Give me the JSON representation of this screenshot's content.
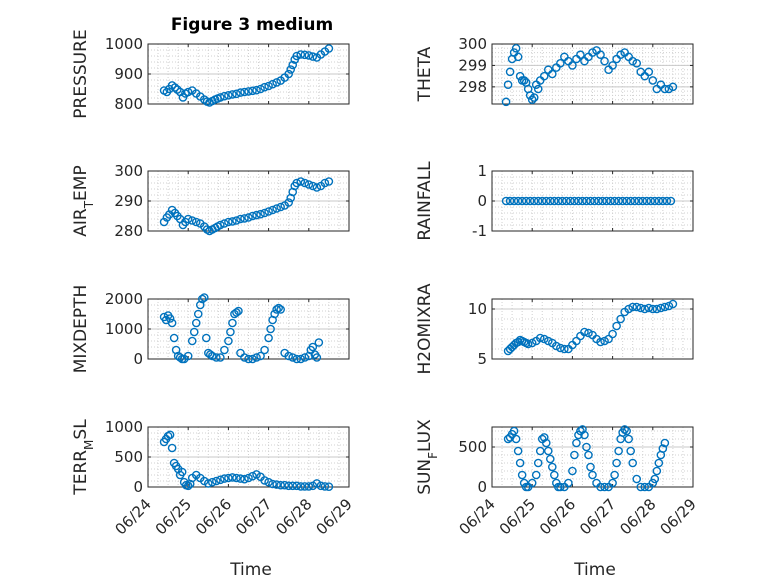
{
  "figure_title": "Figure 3 medium",
  "xlabel": "Time",
  "x_ticks": [
    "06/24",
    "06/25",
    "06/26",
    "06/27",
    "06/28",
    "06/29"
  ],
  "marker_color": "#0072BD",
  "chart_data": [
    {
      "type": "scatter",
      "ylabel": "PRESSURE",
      "ylim": [
        800,
        1000
      ],
      "yticks": [
        800,
        900,
        1000
      ],
      "grid": true,
      "title": "Figure 3 medium",
      "x": [
        0.4,
        0.47,
        0.53,
        0.6,
        0.67,
        0.73,
        0.8,
        0.87,
        0.93,
        1.0,
        1.1,
        1.2,
        1.3,
        1.4,
        1.47,
        1.53,
        1.6,
        1.67,
        1.73,
        1.8,
        1.9,
        2.0,
        2.1,
        2.2,
        2.3,
        2.4,
        2.5,
        2.6,
        2.7,
        2.8,
        2.9,
        3.0,
        3.1,
        3.2,
        3.3,
        3.4,
        3.5,
        3.55,
        3.6,
        3.65,
        3.7,
        3.8,
        3.9,
        4.0,
        4.1,
        4.2,
        4.3,
        4.4,
        4.5
      ],
      "y": [
        845,
        840,
        850,
        862,
        855,
        848,
        840,
        822,
        835,
        840,
        845,
        835,
        825,
        815,
        808,
        805,
        810,
        815,
        818,
        822,
        826,
        829,
        832,
        834,
        838,
        840,
        842,
        844,
        846,
        850,
        856,
        860,
        866,
        872,
        878,
        888,
        900,
        915,
        930,
        948,
        960,
        965,
        964,
        962,
        958,
        955,
        965,
        975,
        985
      ]
    },
    {
      "type": "scatter",
      "ylabel": "THETA",
      "ylim": [
        297.2,
        300
      ],
      "yticks": [
        298,
        299,
        300
      ],
      "grid": true,
      "x": [
        0.35,
        0.4,
        0.45,
        0.5,
        0.55,
        0.6,
        0.65,
        0.7,
        0.75,
        0.8,
        0.85,
        0.9,
        0.95,
        1.0,
        1.05,
        1.1,
        1.15,
        1.2,
        1.3,
        1.4,
        1.5,
        1.6,
        1.7,
        1.8,
        1.9,
        2.0,
        2.1,
        2.2,
        2.3,
        2.4,
        2.5,
        2.6,
        2.7,
        2.8,
        2.9,
        3.0,
        3.1,
        3.2,
        3.3,
        3.4,
        3.5,
        3.6,
        3.7,
        3.8,
        3.9,
        4.0,
        4.1,
        4.2,
        4.3,
        4.4,
        4.5
      ],
      "y": [
        297.3,
        298.1,
        298.7,
        299.3,
        299.6,
        299.8,
        299.4,
        298.5,
        298.3,
        298.3,
        298.2,
        297.9,
        297.6,
        297.4,
        297.5,
        298.1,
        297.9,
        298.3,
        298.5,
        298.8,
        298.6,
        298.9,
        299.1,
        299.4,
        299.2,
        299.0,
        299.3,
        299.5,
        299.2,
        299.4,
        299.6,
        299.7,
        299.5,
        299.2,
        298.8,
        299.0,
        299.3,
        299.5,
        299.6,
        299.4,
        299.2,
        299.1,
        298.7,
        298.5,
        298.7,
        298.3,
        297.9,
        298.1,
        297.9,
        297.9,
        298.0
      ]
    },
    {
      "type": "scatter",
      "ylabel": "AIR_TEMP",
      "ylim": [
        280,
        300
      ],
      "yticks": [
        280,
        290,
        300
      ],
      "grid": true,
      "x": [
        0.4,
        0.47,
        0.53,
        0.6,
        0.67,
        0.73,
        0.8,
        0.87,
        0.93,
        1.0,
        1.1,
        1.2,
        1.3,
        1.4,
        1.47,
        1.53,
        1.6,
        1.67,
        1.73,
        1.8,
        1.9,
        2.0,
        2.1,
        2.2,
        2.3,
        2.4,
        2.5,
        2.6,
        2.7,
        2.8,
        2.9,
        3.0,
        3.1,
        3.2,
        3.3,
        3.4,
        3.5,
        3.55,
        3.6,
        3.65,
        3.7,
        3.8,
        3.9,
        4.0,
        4.1,
        4.2,
        4.3,
        4.4,
        4.5
      ],
      "y": [
        283,
        284.5,
        285.5,
        287,
        286,
        285,
        284,
        282,
        283,
        284,
        283.5,
        283,
        282.5,
        281.5,
        280.5,
        280,
        280.5,
        281,
        281.5,
        282,
        282.5,
        283,
        283.2,
        283.5,
        284,
        284.2,
        284.5,
        285,
        285.3,
        285.6,
        286,
        286.5,
        287,
        287.5,
        288,
        288.5,
        289.5,
        291,
        293,
        295,
        296,
        296.5,
        296,
        295.5,
        295,
        294.5,
        295,
        296,
        296.5
      ]
    },
    {
      "type": "scatter",
      "ylabel": "RAINFALL",
      "ylim": [
        -1,
        1
      ],
      "yticks": [
        -1,
        0,
        1
      ],
      "grid": true,
      "x": [
        0.35,
        0.45,
        0.55,
        0.65,
        0.75,
        0.85,
        0.95,
        1.05,
        1.15,
        1.25,
        1.35,
        1.45,
        1.55,
        1.65,
        1.75,
        1.85,
        1.95,
        2.05,
        2.15,
        2.25,
        2.35,
        2.45,
        2.55,
        2.65,
        2.75,
        2.85,
        2.95,
        3.05,
        3.15,
        3.25,
        3.35,
        3.45,
        3.55,
        3.65,
        3.75,
        3.85,
        3.95,
        4.05,
        4.15,
        4.25,
        4.35,
        4.45
      ],
      "y": [
        0,
        0,
        0,
        0,
        0,
        0,
        0,
        0,
        0,
        0,
        0,
        0,
        0,
        0,
        0,
        0,
        0,
        0,
        0,
        0,
        0,
        0,
        0,
        0,
        0,
        0,
        0,
        0,
        0,
        0,
        0,
        0,
        0,
        0,
        0,
        0,
        0,
        0,
        0,
        0,
        0,
        0
      ]
    },
    {
      "type": "scatter",
      "ylabel": "MIXDEPTH",
      "ylim": [
        0,
        2000
      ],
      "yticks": [
        0,
        1000,
        2000
      ],
      "grid": true,
      "x": [
        0.4,
        0.45,
        0.5,
        0.55,
        0.6,
        0.65,
        0.7,
        0.75,
        0.8,
        0.85,
        0.9,
        1.0,
        1.1,
        1.15,
        1.2,
        1.25,
        1.3,
        1.35,
        1.4,
        1.45,
        1.5,
        1.55,
        1.6,
        1.7,
        1.8,
        1.9,
        2.0,
        2.05,
        2.1,
        2.15,
        2.2,
        2.25,
        2.3,
        2.4,
        2.5,
        2.6,
        2.7,
        2.8,
        2.9,
        3.0,
        3.05,
        3.1,
        3.15,
        3.2,
        3.25,
        3.3,
        3.4,
        3.5,
        3.6,
        3.7,
        3.8,
        3.9,
        4.0,
        4.05,
        4.1,
        4.15,
        4.2,
        4.25
      ],
      "y": [
        1400,
        1300,
        1450,
        1350,
        1200,
        700,
        300,
        100,
        50,
        0,
        0,
        100,
        600,
        900,
        1200,
        1500,
        1800,
        2000,
        2050,
        700,
        200,
        150,
        100,
        50,
        50,
        300,
        600,
        900,
        1200,
        1500,
        1550,
        1600,
        200,
        50,
        0,
        0,
        50,
        100,
        300,
        700,
        1000,
        1300,
        1500,
        1650,
        1700,
        1650,
        200,
        100,
        50,
        0,
        0,
        50,
        100,
        300,
        400,
        150,
        50,
        550
      ]
    },
    {
      "type": "scatter",
      "ylabel": "H2OMIXRA",
      "ylim": [
        5,
        11
      ],
      "yticks": [
        5,
        10
      ],
      "grid": true,
      "x": [
        0.4,
        0.45,
        0.5,
        0.55,
        0.6,
        0.65,
        0.7,
        0.75,
        0.8,
        0.85,
        0.9,
        1.0,
        1.1,
        1.2,
        1.3,
        1.4,
        1.5,
        1.6,
        1.7,
        1.8,
        1.9,
        2.0,
        2.1,
        2.2,
        2.3,
        2.4,
        2.5,
        2.6,
        2.7,
        2.8,
        2.9,
        3.0,
        3.1,
        3.2,
        3.3,
        3.4,
        3.5,
        3.6,
        3.7,
        3.8,
        3.9,
        4.0,
        4.1,
        4.2,
        4.3,
        4.4,
        4.5
      ],
      "y": [
        5.8,
        6.0,
        6.2,
        6.4,
        6.6,
        6.7,
        6.9,
        6.8,
        6.7,
        6.6,
        6.5,
        6.6,
        6.8,
        7.1,
        7.0,
        6.8,
        6.6,
        6.3,
        6.1,
        6.0,
        6.0,
        6.4,
        6.8,
        7.3,
        7.7,
        7.6,
        7.4,
        7.0,
        6.7,
        6.8,
        7.0,
        7.5,
        8.3,
        9.0,
        9.7,
        10.0,
        10.2,
        10.2,
        10.1,
        10.0,
        10.1,
        10.0,
        10.0,
        10.1,
        10.2,
        10.3,
        10.5
      ]
    },
    {
      "type": "scatter",
      "ylabel": "TERR_MSL",
      "ylim": [
        0,
        1000
      ],
      "yticks": [
        0,
        500,
        1000
      ],
      "grid": true,
      "x": [
        0.4,
        0.45,
        0.5,
        0.55,
        0.6,
        0.65,
        0.7,
        0.75,
        0.8,
        0.85,
        0.9,
        0.95,
        1.0,
        1.05,
        1.1,
        1.2,
        1.3,
        1.4,
        1.5,
        1.6,
        1.7,
        1.8,
        1.9,
        2.0,
        2.1,
        2.2,
        2.3,
        2.4,
        2.5,
        2.6,
        2.7,
        2.8,
        2.9,
        3.0,
        3.1,
        3.2,
        3.3,
        3.4,
        3.5,
        3.6,
        3.7,
        3.8,
        3.9,
        4.0,
        4.1,
        4.2,
        4.3,
        4.4,
        4.5
      ],
      "y": [
        750,
        800,
        850,
        870,
        650,
        400,
        350,
        300,
        200,
        250,
        80,
        30,
        20,
        50,
        150,
        200,
        150,
        100,
        60,
        80,
        100,
        120,
        140,
        150,
        160,
        150,
        140,
        130,
        150,
        180,
        210,
        170,
        110,
        80,
        50,
        40,
        30,
        30,
        20,
        20,
        20,
        10,
        10,
        10,
        20,
        60,
        20,
        10,
        5
      ]
    },
    {
      "type": "scatter",
      "ylabel": "SUN_FLUX",
      "ylim": [
        0,
        750
      ],
      "yticks": [
        0,
        500
      ],
      "grid": true,
      "x": [
        0.4,
        0.45,
        0.5,
        0.55,
        0.6,
        0.65,
        0.7,
        0.75,
        0.8,
        0.85,
        0.9,
        1.0,
        1.1,
        1.15,
        1.2,
        1.25,
        1.3,
        1.35,
        1.4,
        1.45,
        1.5,
        1.55,
        1.6,
        1.65,
        1.7,
        1.8,
        1.9,
        2.0,
        2.05,
        2.1,
        2.15,
        2.2,
        2.25,
        2.3,
        2.35,
        2.4,
        2.45,
        2.5,
        2.6,
        2.7,
        2.8,
        2.9,
        3.0,
        3.05,
        3.1,
        3.15,
        3.2,
        3.25,
        3.3,
        3.35,
        3.4,
        3.45,
        3.5,
        3.6,
        3.7,
        3.8,
        3.9,
        4.0,
        4.05,
        4.1,
        4.15,
        4.2,
        4.25,
        4.3
      ],
      "y": [
        600,
        620,
        660,
        700,
        600,
        450,
        300,
        150,
        50,
        0,
        0,
        50,
        150,
        300,
        450,
        600,
        620,
        550,
        450,
        350,
        250,
        150,
        50,
        0,
        0,
        0,
        50,
        200,
        400,
        550,
        650,
        700,
        720,
        650,
        500,
        400,
        250,
        150,
        50,
        0,
        0,
        0,
        50,
        150,
        300,
        450,
        600,
        680,
        720,
        700,
        600,
        450,
        300,
        100,
        0,
        0,
        0,
        50,
        100,
        200,
        300,
        400,
        480,
        550
      ]
    }
  ]
}
